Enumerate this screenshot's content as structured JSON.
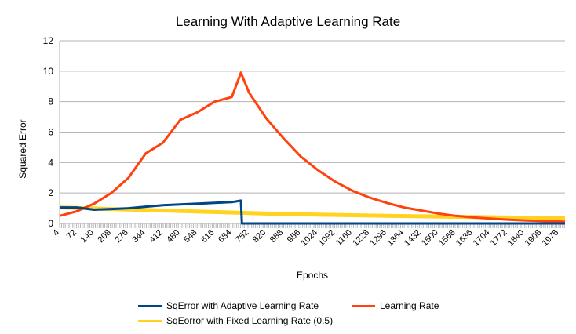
{
  "chart_data": {
    "type": "line",
    "title": "Learning With Adaptive Learning Rate",
    "xlabel": "Epochs",
    "ylabel": "Squared Error",
    "ylim": [
      0,
      12
    ],
    "yticks": [
      0,
      2,
      4,
      6,
      8,
      10,
      12
    ],
    "xlim": [
      4,
      2000
    ],
    "xticks": [
      4,
      72,
      140,
      208,
      276,
      344,
      412,
      480,
      548,
      616,
      684,
      752,
      820,
      888,
      956,
      1024,
      1092,
      1160,
      1228,
      1296,
      1364,
      1432,
      1500,
      1568,
      1636,
      1704,
      1772,
      1840,
      1908,
      1976
    ],
    "grid": "horizontal",
    "legend_position": "bottom",
    "series": [
      {
        "name": "SqError with Adaptive Learning Rate",
        "color": "#004586",
        "x": [
          4,
          72,
          140,
          208,
          276,
          344,
          412,
          480,
          548,
          616,
          684,
          720,
          724,
          752,
          820,
          1024,
          1500,
          2000
        ],
        "y": [
          1.05,
          1.05,
          0.9,
          0.95,
          1.0,
          1.1,
          1.2,
          1.25,
          1.3,
          1.35,
          1.4,
          1.5,
          0.0,
          0.0,
          0.0,
          0.0,
          0.0,
          0.0
        ]
      },
      {
        "name": "Learning Rate",
        "color": "#ff420e",
        "x": [
          4,
          72,
          140,
          208,
          276,
          344,
          412,
          480,
          548,
          616,
          684,
          720,
          752,
          820,
          888,
          956,
          1024,
          1092,
          1160,
          1228,
          1296,
          1364,
          1432,
          1500,
          1568,
          1636,
          1704,
          1772,
          1840,
          1908,
          1976,
          2000
        ],
        "y": [
          0.5,
          0.8,
          1.3,
          2.0,
          3.0,
          4.6,
          5.3,
          6.8,
          7.3,
          8.0,
          8.3,
          9.9,
          8.6,
          6.9,
          5.6,
          4.4,
          3.5,
          2.75,
          2.15,
          1.7,
          1.35,
          1.05,
          0.85,
          0.65,
          0.5,
          0.4,
          0.32,
          0.25,
          0.2,
          0.16,
          0.13,
          0.12
        ]
      },
      {
        "name": "SqEorror with Fixed Learning Rate (0.5)",
        "color": "#ffd320",
        "x": [
          4,
          208,
          412,
          616,
          820,
          1024,
          1228,
          1432,
          1636,
          1840,
          2000
        ],
        "y": [
          1.05,
          0.95,
          0.85,
          0.75,
          0.65,
          0.58,
          0.52,
          0.47,
          0.42,
          0.38,
          0.35
        ]
      }
    ]
  }
}
